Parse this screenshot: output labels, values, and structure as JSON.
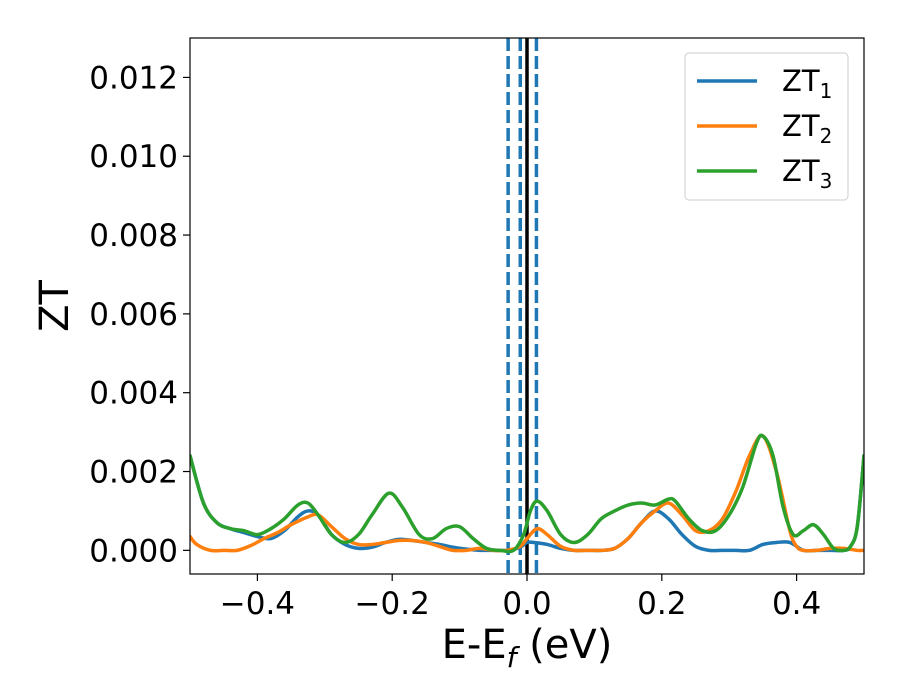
{
  "chart_data": {
    "type": "line",
    "xlabel": {
      "main": "E-E",
      "sub": "f",
      "tail": " (eV)"
    },
    "ylabel": "ZT",
    "xlim": [
      -0.5,
      0.5
    ],
    "ylim": [
      -0.0006,
      0.013
    ],
    "xticks": [
      {
        "value": -0.4,
        "label": "−0.4"
      },
      {
        "value": -0.2,
        "label": "−0.2"
      },
      {
        "value": 0.0,
        "label": "0.0"
      },
      {
        "value": 0.2,
        "label": "0.2"
      },
      {
        "value": 0.4,
        "label": "0.4"
      }
    ],
    "yticks": [
      {
        "value": 0.0,
        "label": "0.000"
      },
      {
        "value": 0.002,
        "label": "0.002"
      },
      {
        "value": 0.004,
        "label": "0.004"
      },
      {
        "value": 0.006,
        "label": "0.006"
      },
      {
        "value": 0.008,
        "label": "0.008"
      },
      {
        "value": 0.01,
        "label": "0.010"
      },
      {
        "value": 0.012,
        "label": "0.012"
      }
    ],
    "grid": false,
    "legend_position": "top-right",
    "vertical_lines": [
      {
        "x": 0.0,
        "color": "#000000",
        "style": "solid"
      },
      {
        "x": -0.028,
        "color": "#1f77b4",
        "style": "dashed"
      },
      {
        "x": -0.01,
        "color": "#1f77b4",
        "style": "dashed"
      },
      {
        "x": 0.014,
        "color": "#1f77b4",
        "style": "dashed"
      }
    ],
    "series": [
      {
        "name": "ZT",
        "sub": "1",
        "color": "#1f77b4",
        "points": [
          [
            -0.5,
            0.0024
          ],
          [
            -0.48,
            0.0012
          ],
          [
            -0.46,
            0.0007
          ],
          [
            -0.44,
            0.00055
          ],
          [
            -0.42,
            0.00045
          ],
          [
            -0.4,
            0.00035
          ],
          [
            -0.38,
            0.0003
          ],
          [
            -0.36,
            0.0005
          ],
          [
            -0.34,
            0.00085
          ],
          [
            -0.325,
            0.001
          ],
          [
            -0.31,
            0.0009
          ],
          [
            -0.29,
            0.0004
          ],
          [
            -0.27,
            0.00015
          ],
          [
            -0.25,
            5e-05
          ],
          [
            -0.23,
            8e-05
          ],
          [
            -0.21,
            0.0002
          ],
          [
            -0.19,
            0.00028
          ],
          [
            -0.17,
            0.00025
          ],
          [
            -0.15,
            0.0002
          ],
          [
            -0.13,
            0.00015
          ],
          [
            -0.11,
            8e-05
          ],
          [
            -0.09,
            3e-05
          ],
          [
            -0.07,
            0.0
          ],
          [
            -0.05,
            0.0
          ],
          [
            -0.03,
            0.0
          ],
          [
            -0.01,
            8e-05
          ],
          [
            0.0,
            0.0002
          ],
          [
            0.01,
            0.0002
          ],
          [
            0.03,
            0.00015
          ],
          [
            0.05,
            5e-05
          ],
          [
            0.07,
            0.0
          ],
          [
            0.09,
            0.0
          ],
          [
            0.11,
            0.0
          ],
          [
            0.13,
            5e-05
          ],
          [
            0.15,
            0.0003
          ],
          [
            0.17,
            0.0007
          ],
          [
            0.19,
            0.001
          ],
          [
            0.21,
            0.0008
          ],
          [
            0.23,
            0.0004
          ],
          [
            0.25,
            0.0001
          ],
          [
            0.27,
            0.0
          ],
          [
            0.29,
            0.0
          ],
          [
            0.31,
            0.0
          ],
          [
            0.33,
            0.0
          ],
          [
            0.35,
            0.00015
          ],
          [
            0.37,
            0.0002
          ],
          [
            0.39,
            0.0002
          ],
          [
            0.41,
            0.0
          ],
          [
            0.43,
            0.0
          ],
          [
            0.45,
            0.0
          ],
          [
            0.47,
            0.0
          ],
          [
            0.48,
            0.0001
          ],
          [
            0.49,
            0.0006
          ],
          [
            0.5,
            0.0024
          ]
        ]
      },
      {
        "name": "ZT",
        "sub": "2",
        "color": "#ff7f0e",
        "points": [
          [
            -0.5,
            0.00035
          ],
          [
            -0.49,
            0.00015
          ],
          [
            -0.47,
            0.0
          ],
          [
            -0.45,
            0.0
          ],
          [
            -0.43,
            0.0
          ],
          [
            -0.41,
            0.00012
          ],
          [
            -0.39,
            0.0003
          ],
          [
            -0.37,
            0.00045
          ],
          [
            -0.35,
            0.00065
          ],
          [
            -0.325,
            0.00085
          ],
          [
            -0.31,
            0.0009
          ],
          [
            -0.29,
            0.0006
          ],
          [
            -0.27,
            0.0003
          ],
          [
            -0.25,
            0.00015
          ],
          [
            -0.23,
            0.00015
          ],
          [
            -0.21,
            0.0002
          ],
          [
            -0.19,
            0.00025
          ],
          [
            -0.17,
            0.00025
          ],
          [
            -0.15,
            0.0002
          ],
          [
            -0.13,
            0.0001
          ],
          [
            -0.11,
            0.0
          ],
          [
            -0.09,
            0.0
          ],
          [
            -0.07,
            5e-05
          ],
          [
            -0.05,
            0.0
          ],
          [
            -0.03,
            0.0
          ],
          [
            -0.01,
            0.0001
          ],
          [
            0.0,
            0.0003
          ],
          [
            0.015,
            0.00055
          ],
          [
            0.03,
            0.0004
          ],
          [
            0.05,
            0.0001
          ],
          [
            0.07,
            0.0
          ],
          [
            0.09,
            0.0
          ],
          [
            0.11,
            0.0
          ],
          [
            0.13,
            5e-05
          ],
          [
            0.15,
            0.0003
          ],
          [
            0.17,
            0.0007
          ],
          [
            0.19,
            0.001
          ],
          [
            0.21,
            0.0012
          ],
          [
            0.23,
            0.0009
          ],
          [
            0.25,
            0.0005
          ],
          [
            0.27,
            0.0005
          ],
          [
            0.29,
            0.0008
          ],
          [
            0.31,
            0.0015
          ],
          [
            0.33,
            0.0024
          ],
          [
            0.35,
            0.0029
          ],
          [
            0.37,
            0.002
          ],
          [
            0.39,
            0.0005
          ],
          [
            0.4,
            0.0001
          ],
          [
            0.41,
            0.0
          ],
          [
            0.43,
            0.0
          ],
          [
            0.45,
            5e-05
          ],
          [
            0.47,
            5e-05
          ],
          [
            0.49,
            0.0
          ],
          [
            0.5,
            0.0
          ]
        ]
      },
      {
        "name": "ZT",
        "sub": "3",
        "color": "#2ca02c",
        "points": [
          [
            -0.5,
            0.0024
          ],
          [
            -0.48,
            0.0012
          ],
          [
            -0.46,
            0.0007
          ],
          [
            -0.44,
            0.00055
          ],
          [
            -0.42,
            0.0005
          ],
          [
            -0.4,
            0.0004
          ],
          [
            -0.38,
            0.00055
          ],
          [
            -0.36,
            0.0008
          ],
          [
            -0.34,
            0.00115
          ],
          [
            -0.325,
            0.0012
          ],
          [
            -0.31,
            0.0009
          ],
          [
            -0.29,
            0.0004
          ],
          [
            -0.27,
            0.0002
          ],
          [
            -0.25,
            0.0004
          ],
          [
            -0.23,
            0.0009
          ],
          [
            -0.205,
            0.00145
          ],
          [
            -0.185,
            0.0011
          ],
          [
            -0.16,
            0.0004
          ],
          [
            -0.14,
            0.0003
          ],
          [
            -0.12,
            0.00055
          ],
          [
            -0.1,
            0.0006
          ],
          [
            -0.08,
            0.0003
          ],
          [
            -0.06,
            5e-05
          ],
          [
            -0.04,
            0.0
          ],
          [
            -0.02,
            0.0
          ],
          [
            -0.005,
            0.0004
          ],
          [
            0.005,
            0.001
          ],
          [
            0.015,
            0.00125
          ],
          [
            0.03,
            0.001
          ],
          [
            0.05,
            0.0004
          ],
          [
            0.07,
            0.0002
          ],
          [
            0.09,
            0.0004
          ],
          [
            0.11,
            0.0008
          ],
          [
            0.13,
            0.001
          ],
          [
            0.15,
            0.00115
          ],
          [
            0.17,
            0.0012
          ],
          [
            0.19,
            0.00115
          ],
          [
            0.21,
            0.0013
          ],
          [
            0.22,
            0.00125
          ],
          [
            0.24,
            0.0008
          ],
          [
            0.26,
            0.0005
          ],
          [
            0.28,
            0.0005
          ],
          [
            0.3,
            0.0009
          ],
          [
            0.32,
            0.0016
          ],
          [
            0.34,
            0.0027
          ],
          [
            0.35,
            0.0029
          ],
          [
            0.365,
            0.0024
          ],
          [
            0.38,
            0.0011
          ],
          [
            0.395,
            0.0004
          ],
          [
            0.41,
            0.0005
          ],
          [
            0.425,
            0.00065
          ],
          [
            0.44,
            0.0004
          ],
          [
            0.455,
            5e-05
          ],
          [
            0.47,
            0.0
          ],
          [
            0.48,
            0.0001
          ],
          [
            0.49,
            0.0006
          ],
          [
            0.5,
            0.0024
          ]
        ]
      }
    ]
  }
}
